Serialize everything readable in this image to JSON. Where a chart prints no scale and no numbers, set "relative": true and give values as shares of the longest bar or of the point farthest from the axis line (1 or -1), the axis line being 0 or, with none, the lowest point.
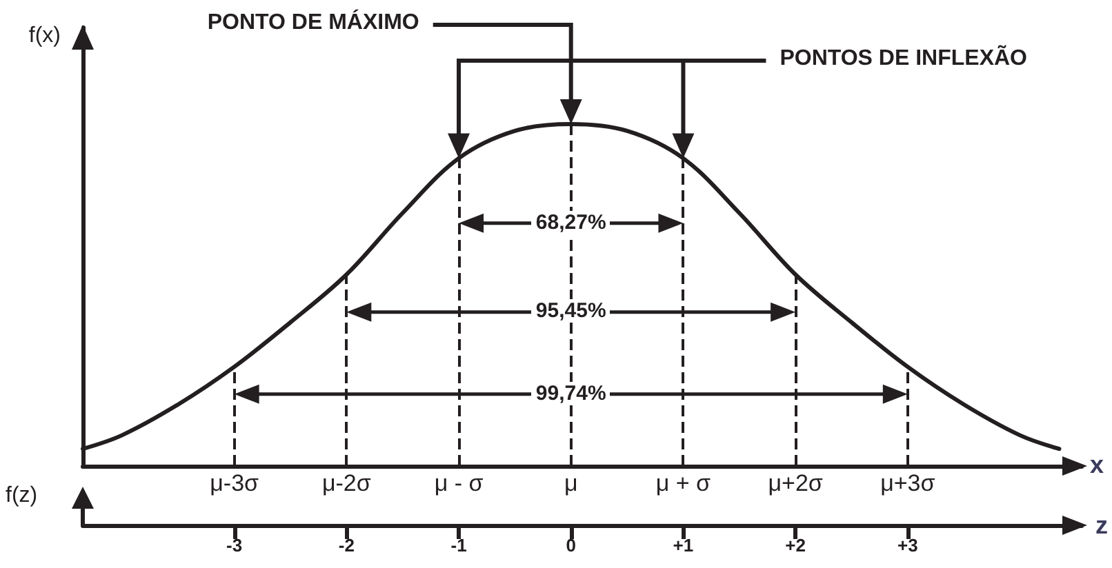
{
  "chart_data": {
    "type": "line",
    "relative": true,
    "color": "#231f20",
    "marker": "none",
    "line_style": "solid",
    "grid": false,
    "x": [
      -4.35,
      -4,
      -3.5,
      -3,
      -2.5,
      -2,
      -1.5,
      -1,
      -0.5,
      0,
      0.5,
      1,
      1.5,
      2,
      2.5,
      3,
      3.5,
      4,
      4.35
    ],
    "values": [
      0.05,
      0.09,
      0.18,
      0.29,
      0.42,
      0.56,
      0.74,
      0.9,
      0.98,
      1,
      0.98,
      0.9,
      0.74,
      0.56,
      0.42,
      0.29,
      0.18,
      0.09,
      0.05
    ],
    "xlim": [
      -4.35,
      4.55
    ],
    "xticks": [
      -3,
      -2,
      -1,
      0,
      {
        "value": 1,
        "label": "+1"
      },
      {
        "value": 2,
        "label": "+2"
      },
      {
        "value": 3,
        "label": "+3"
      }
    ],
    "xlabel": "z",
    "ylabel": "f(x)",
    "ref_lines": [
      {
        "axis": "x",
        "value": -3,
        "line_style": "dashed"
      },
      {
        "axis": "x",
        "value": -2,
        "line_style": "dashed"
      },
      {
        "axis": "x",
        "value": -1,
        "line_style": "dashed"
      },
      {
        "axis": "x",
        "value": 0,
        "line_style": "dashed"
      },
      {
        "axis": "x",
        "value": 1,
        "line_style": "dashed"
      },
      {
        "axis": "x",
        "value": 2,
        "line_style": "dashed"
      },
      {
        "axis": "x",
        "value": 3,
        "line_style": "dashed"
      }
    ],
    "annotations": [
      "PONTO DE MÁXIMO",
      "PONTOS DE INFLEXÃO",
      {
        "text": "68,27%",
        "x": 0,
        "y": 0.71
      },
      {
        "text": "95,45%",
        "x": 0,
        "y": 0.45
      },
      {
        "text": "99,74%",
        "x": 0,
        "y": 0.21
      },
      {
        "text": "μ-3σ",
        "x": -3,
        "y": 0
      },
      {
        "text": "μ-2σ",
        "x": -2,
        "y": 0
      },
      {
        "text": "μ - σ",
        "x": -1,
        "y": 0
      },
      {
        "text": "μ",
        "x": 0,
        "y": 0
      },
      {
        "text": "μ + σ",
        "x": 1,
        "y": 0
      },
      {
        "text": "μ+2σ",
        "x": 2,
        "y": 0
      },
      {
        "text": "μ+3σ",
        "x": 3,
        "y": 0
      },
      "x",
      "f(z)"
    ]
  }
}
